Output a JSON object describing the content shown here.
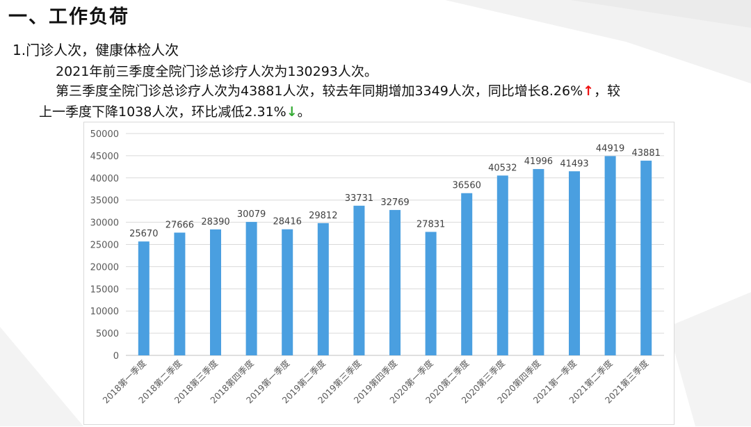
{
  "slide": {
    "heading": "一、工作负荷",
    "subheading": "1.门诊人次，健康体检人次",
    "line1": "2021年前三季度全院门诊总诊疗人次为130293人次。",
    "line2_text": "第三季度全院门诊总诊疗人次为43881人次，较去年同期增加3349人次，同比增长8.26%",
    "line2_arrow": "↑",
    "line2_tail": "，较",
    "line3_text": "上一季度下降1038人次，环比减低2.31%",
    "line3_arrow": "↓",
    "line3_tail": "。"
  },
  "colors": {
    "bar": "#4a9fe0",
    "up_arrow": "#e11111",
    "down_arrow": "#33aa33"
  },
  "chart_data": {
    "type": "bar",
    "title": "",
    "xlabel": "",
    "ylabel": "",
    "ylim": [
      0,
      50000
    ],
    "yticks": [
      0,
      5000,
      10000,
      15000,
      20000,
      25000,
      30000,
      35000,
      40000,
      45000,
      50000
    ],
    "grid": true,
    "categories": [
      "2018第一季度",
      "2018第二季度",
      "2018第三季度",
      "2018第四季度",
      "2019第一季度",
      "2019第二季度",
      "2019第三季度",
      "2019第四季度",
      "2020第一季度",
      "2020第二季度",
      "2020第三季度",
      "2020第四季度",
      "2021第一季度",
      "2021第二季度",
      "2021第三季度"
    ],
    "values": [
      25670,
      27666,
      28390,
      30079,
      28416,
      29812,
      33731,
      32769,
      27831,
      36560,
      40532,
      41996,
      41493,
      44919,
      43881
    ]
  }
}
